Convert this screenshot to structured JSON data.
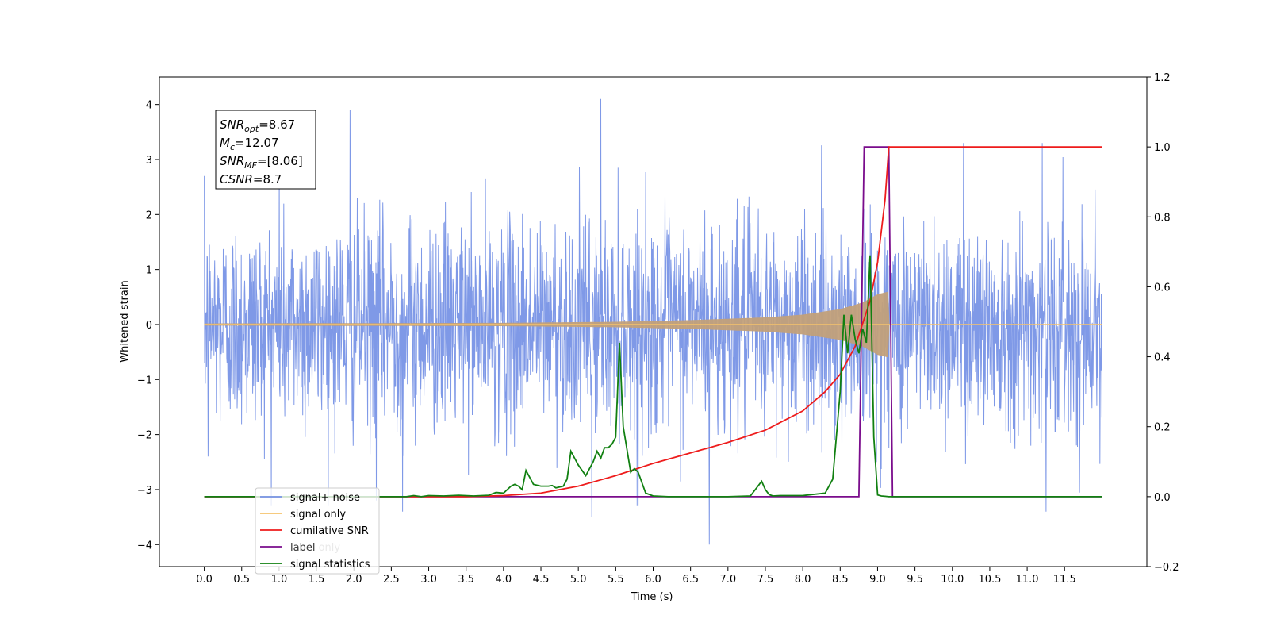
{
  "chart_data": {
    "type": "line",
    "title": "",
    "xlabel": "Time (s)",
    "ylabel": "Whitened strain",
    "y2label": "",
    "xlim": [
      -0.6,
      12.6
    ],
    "ylim": [
      -4.4,
      4.5
    ],
    "y2lim": [
      -0.2,
      1.2
    ],
    "xticks": [
      "0.0",
      "0.5",
      "1.0",
      "1.5",
      "2.0",
      "2.5",
      "3.0",
      "3.5",
      "4.0",
      "4.5",
      "5.0",
      "5.5",
      "6.0",
      "6.5",
      "7.0",
      "7.5",
      "8.0",
      "8.5",
      "9.0",
      "9.5",
      "10.0",
      "10.5",
      "11.0",
      "11.5"
    ],
    "yticks": [
      "4",
      "3",
      "2",
      "1",
      "0",
      "−1",
      "−2",
      "−3",
      "−4"
    ],
    "y2ticks": [
      "1.2",
      "1.0",
      "0.8",
      "0.6",
      "0.4",
      "0.2",
      "0.0",
      "−0.2"
    ],
    "grid": false,
    "legend_position": "lower-left",
    "colors": {
      "signal_noise": "#7893e6",
      "signal_only": "#f5c26b",
      "signal_fill": "#c2a07a",
      "cumulative_snr": "#ee1c1c",
      "label": "#7a0c8c",
      "signal_statistics": "#118011"
    },
    "info_box": [
      {
        "sym": "SNR",
        "sub": "opt",
        "rest": "=8.67"
      },
      {
        "sym": "M",
        "sub": "c",
        "rest": "=12.07"
      },
      {
        "sym": "SNR",
        "sub": "MF",
        "rest": "=[8.06]"
      },
      {
        "sym": "CSNR",
        "sub": "",
        "rest": "=8.7"
      }
    ],
    "series": [
      {
        "name": "signal+ noise",
        "axis": "left",
        "noise_std": 0.95,
        "x_range": [
          0.0,
          12.0
        ],
        "peaks": [
          [
            0.0,
            2.7
          ],
          [
            1.95,
            3.9
          ],
          [
            2.65,
            -3.4
          ],
          [
            5.18,
            -3.5
          ],
          [
            5.3,
            4.1
          ],
          [
            5.8,
            -3.3
          ],
          [
            6.75,
            -4.0
          ],
          [
            11.25,
            -3.4
          ],
          [
            10.15,
            3.3
          ],
          [
            11.2,
            3.3
          ],
          [
            0.05,
            -2.4
          ],
          [
            2.3,
            -3.2
          ],
          [
            1.0,
            3.0
          ]
        ]
      },
      {
        "name": "signal only",
        "axis": "left",
        "x_range": [
          0.0,
          12.0
        ],
        "chirp_end": 9.15,
        "envelope": [
          [
            0.0,
            0.02
          ],
          [
            4.0,
            0.03
          ],
          [
            5.5,
            0.05
          ],
          [
            6.5,
            0.08
          ],
          [
            7.5,
            0.13
          ],
          [
            8.0,
            0.18
          ],
          [
            8.5,
            0.28
          ],
          [
            8.8,
            0.4
          ],
          [
            9.0,
            0.55
          ],
          [
            9.15,
            0.6
          ],
          [
            9.16,
            0.0
          ],
          [
            12.0,
            0.0
          ]
        ]
      },
      {
        "name": "cumilative SNR",
        "axis": "right",
        "x": [
          0.0,
          3.0,
          3.5,
          4.0,
          4.5,
          5.0,
          5.5,
          6.0,
          6.5,
          7.0,
          7.5,
          8.0,
          8.3,
          8.5,
          8.7,
          8.9,
          9.0,
          9.1,
          9.15,
          9.2,
          12.0
        ],
        "y": [
          0.0,
          0.0,
          0.0,
          0.003,
          0.01,
          0.03,
          0.06,
          0.095,
          0.125,
          0.155,
          0.19,
          0.245,
          0.3,
          0.35,
          0.43,
          0.56,
          0.67,
          0.85,
          1.0,
          1.0,
          1.0
        ]
      },
      {
        "name": "label",
        "axis": "right",
        "x": [
          0.0,
          8.75,
          8.82,
          9.15,
          9.2,
          12.0
        ],
        "y": [
          0.0,
          0.0,
          1.0,
          1.0,
          0.0,
          0.0
        ]
      },
      {
        "name": "signal statistics",
        "axis": "right",
        "x": [
          0.0,
          2.7,
          2.8,
          2.9,
          3.0,
          3.2,
          3.4,
          3.6,
          3.8,
          3.9,
          4.0,
          4.05,
          4.1,
          4.15,
          4.2,
          4.25,
          4.3,
          4.4,
          4.5,
          4.6,
          4.65,
          4.7,
          4.8,
          4.85,
          4.9,
          5.0,
          5.05,
          5.1,
          5.2,
          5.25,
          5.3,
          5.35,
          5.4,
          5.45,
          5.5,
          5.55,
          5.6,
          5.7,
          5.75,
          5.8,
          5.9,
          6.0,
          6.2,
          7.0,
          7.3,
          7.45,
          7.5,
          7.55,
          7.6,
          7.7,
          8.0,
          8.3,
          8.4,
          8.5,
          8.55,
          8.6,
          8.65,
          8.7,
          8.75,
          8.8,
          8.85,
          8.9,
          8.95,
          9.0,
          9.05,
          9.1,
          9.15,
          9.2,
          9.3,
          12.0
        ],
        "y": [
          0.0,
          0.0,
          0.003,
          0.0,
          0.003,
          0.002,
          0.004,
          0.002,
          0.004,
          0.012,
          0.01,
          0.02,
          0.03,
          0.035,
          0.03,
          0.02,
          0.075,
          0.035,
          0.03,
          0.03,
          0.032,
          0.025,
          0.03,
          0.05,
          0.13,
          0.09,
          0.075,
          0.06,
          0.1,
          0.13,
          0.11,
          0.14,
          0.14,
          0.15,
          0.17,
          0.44,
          0.2,
          0.07,
          0.08,
          0.07,
          0.01,
          0.002,
          0.0,
          0.0,
          0.002,
          0.044,
          0.02,
          0.006,
          0.002,
          0.003,
          0.003,
          0.01,
          0.05,
          0.3,
          0.52,
          0.41,
          0.52,
          0.45,
          0.41,
          0.48,
          0.44,
          0.69,
          0.17,
          0.005,
          0.002,
          0.001,
          0.0,
          0.0,
          0.0,
          0.0
        ]
      }
    ],
    "legend": [
      "signal+ noise",
      "signal only",
      "cumilative SNR",
      "label",
      "signal statistics"
    ],
    "legend_overlap_text": "label only"
  }
}
